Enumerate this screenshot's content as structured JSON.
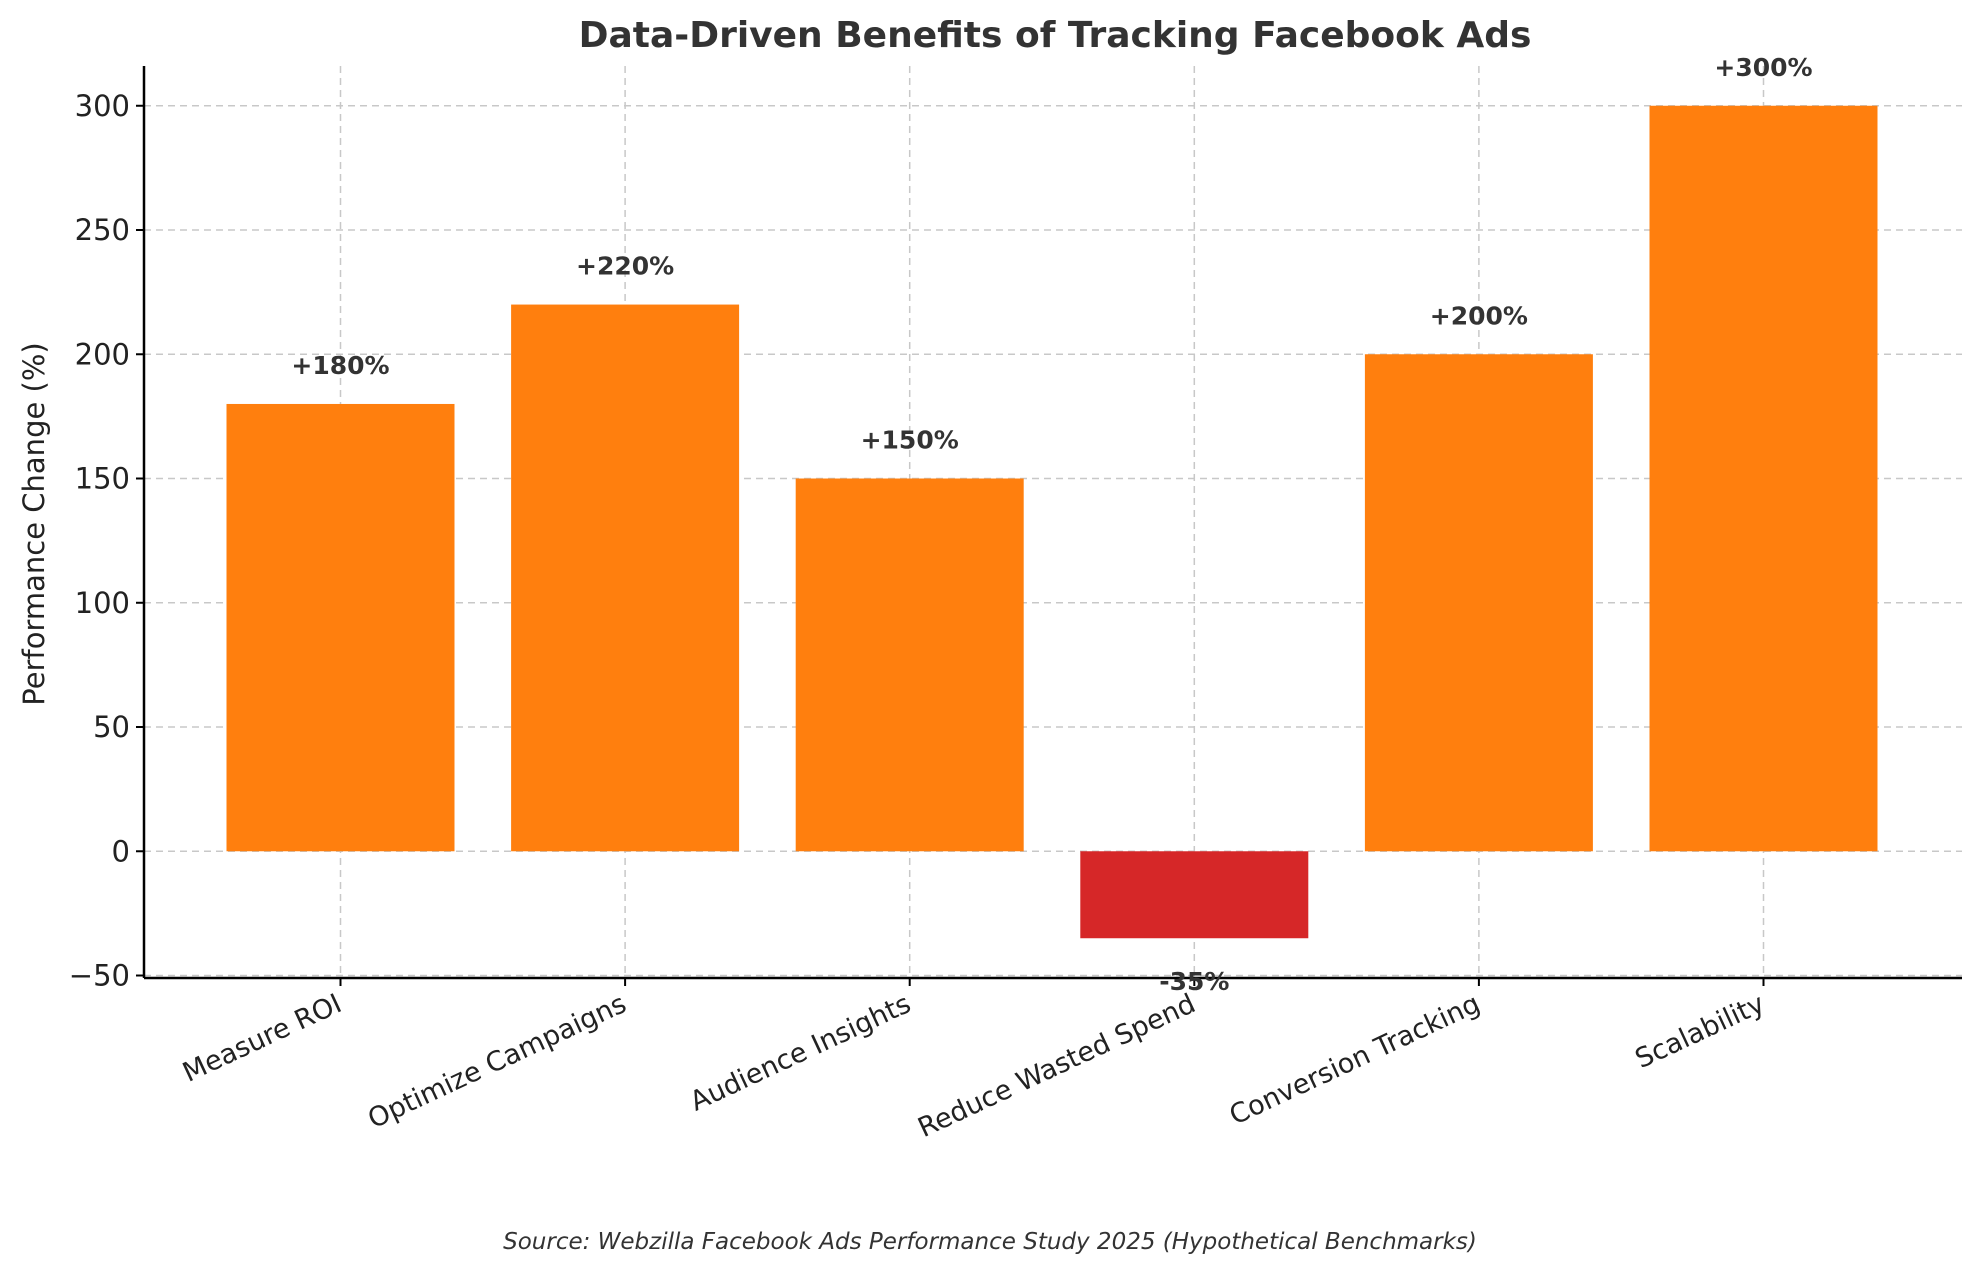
{
  "chart_data": {
    "type": "bar",
    "title": "Data-Driven Benefits of Tracking Facebook Ads",
    "xlabel": "",
    "ylabel": "Performance Change (%)",
    "categories": [
      "Measure ROI",
      "Optimize Campaigns",
      "Audience Insights",
      "Reduce Wasted Spend",
      "Conversion Tracking",
      "Scalability"
    ],
    "values": [
      180,
      220,
      150,
      -35,
      200,
      300
    ],
    "value_labels": [
      "+180%",
      "+220%",
      "+150%",
      "-35%",
      "+200%",
      "+300%"
    ],
    "colors": [
      "#ff7f0e",
      "#ff7f0e",
      "#ff7f0e",
      "#d62728",
      "#ff7f0e",
      "#ff7f0e"
    ],
    "ylim": [
      -51,
      316
    ],
    "yticks": [
      -50,
      0,
      50,
      100,
      150,
      200,
      250,
      300
    ],
    "ytick_labels": [
      "−50",
      "0",
      "50",
      "100",
      "150",
      "200",
      "250",
      "300"
    ],
    "grid": true,
    "legend": "none"
  },
  "footer": {
    "source": "Source: Webzilla Facebook Ads Performance Study 2025 (Hypothetical Benchmarks)"
  }
}
